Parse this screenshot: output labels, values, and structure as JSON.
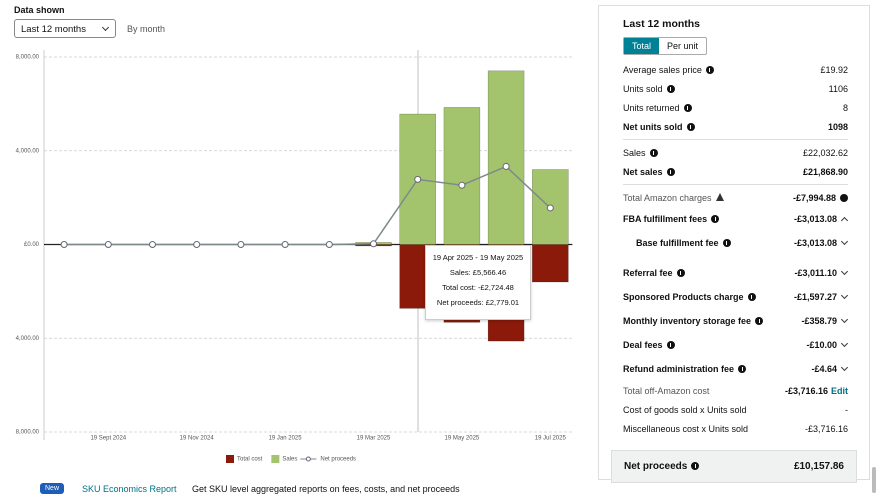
{
  "controls": {
    "label": "Data shown",
    "select": "Last 12 months",
    "view": "By month"
  },
  "chart_data": {
    "type": "bar",
    "categories": [
      null,
      "19 Sept 2024",
      null,
      "19 Nov 2024",
      null,
      "19 Jan 2025",
      null,
      "19 Mar 2025",
      null,
      "19 May 2025",
      null,
      "19 Jul 2025"
    ],
    "series": [
      {
        "name": "Total cost",
        "color": "#8b1a0a",
        "values": [
          0,
          0,
          0,
          0,
          0,
          0,
          0,
          -60,
          -2724.48,
          -3320,
          -4120,
          -1600
        ]
      },
      {
        "name": "Sales",
        "color": "#a3c46c",
        "values": [
          0,
          0,
          0,
          0,
          0,
          0,
          0,
          90,
          5566.46,
          5850,
          7410,
          3200
        ]
      },
      {
        "name": "Net proceeds",
        "type": "line",
        "color": "#7d8a8a",
        "values": [
          0,
          0,
          0,
          0,
          0,
          0,
          0,
          30,
          2779.01,
          2530,
          3330,
          1560
        ]
      }
    ],
    "ylim": [
      -8000,
      8000
    ],
    "yticks": [
      {
        "value": -8000,
        "label": "8,000.00"
      },
      {
        "value": -4000,
        "label": "4,000.00"
      },
      {
        "value": 0,
        "label": "£0.00"
      },
      {
        "value": 4000,
        "label": "4,000.00"
      },
      {
        "value": 8000,
        "label": "8,000.00"
      }
    ],
    "grid": true,
    "tooltip": {
      "period": "19 Apr 2025 - 19 May 2025",
      "lines": [
        "Sales: £5,566.46",
        "Total cost: -£2,724.48",
        "Net proceeds: £2,779.01"
      ]
    }
  },
  "panel": {
    "title": "Last 12 months",
    "tabs": [
      "Total",
      "Per unit"
    ],
    "rows": [
      [
        "Average sales price",
        "£19.92"
      ],
      [
        "Units sold",
        "1106"
      ],
      [
        "Units returned",
        "8"
      ],
      [
        "Net units sold",
        "1098"
      ],
      [
        "Sales",
        "£22,032.62"
      ],
      [
        "Net sales",
        "£21,868.90"
      ],
      [
        "Total Amazon charges",
        "-£7,994.88"
      ],
      [
        "FBA fulfillment fees",
        "-£3,013.08"
      ],
      [
        "Base fulfillment fee",
        "-£3,013.08"
      ],
      [
        "Referral fee",
        "-£3,011.10"
      ],
      [
        "Sponsored Products charge",
        "-£1,597.27"
      ],
      [
        "Monthly inventory storage fee",
        "-£358.79"
      ],
      [
        "Deal fees",
        "-£10.00"
      ],
      [
        "Refund administration fee",
        "-£4.64"
      ],
      [
        "Total off-Amazon cost",
        "-£3,716.16"
      ],
      [
        "Cost of goods sold x Units sold",
        "-"
      ],
      [
        "Miscellaneous cost x Units sold",
        "-£3,716.16"
      ],
      [
        "Net proceeds",
        "£10,157.86"
      ]
    ],
    "edit": "Edit"
  },
  "footer": {
    "badge": "New",
    "link": "SKU Economics Report",
    "text": "Get SKU level aggregated reports on fees, costs, and net proceeds"
  }
}
